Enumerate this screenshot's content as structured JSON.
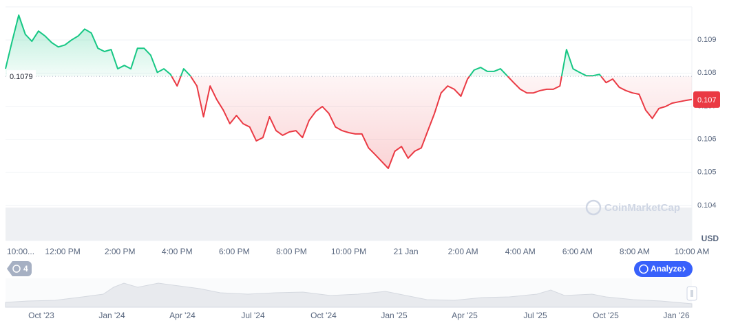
{
  "chart_data": {
    "type": "line",
    "series": [
      {
        "values": [
          0.10813,
          0.10896,
          0.10975,
          0.10917,
          0.10896,
          0.10927,
          0.10912,
          0.10892,
          0.10879,
          0.10885,
          0.109,
          0.10912,
          0.10933,
          0.10921,
          0.10875,
          0.10865,
          0.10871,
          0.10813,
          0.10823,
          0.10813,
          0.10875,
          0.10875,
          0.10854,
          0.10802,
          0.10813,
          0.10796,
          0.10761,
          0.10813,
          0.10792,
          0.10761,
          0.10668,
          0.10761,
          0.1072,
          0.10688,
          0.10647,
          0.10672,
          0.10647,
          0.10637,
          0.10595,
          0.10605,
          0.10668,
          0.10626,
          0.10612,
          0.10622,
          0.10626,
          0.10605,
          0.10657,
          0.10684,
          0.10699,
          0.10678,
          0.10637,
          0.10626,
          0.1062,
          0.10616,
          0.10616,
          0.10574,
          0.10554,
          0.10533,
          0.10512,
          0.10564,
          0.10578,
          0.10543,
          0.10564,
          0.10574,
          0.10626,
          0.10678,
          0.1074,
          0.10761,
          0.10751,
          0.1073,
          0.10782,
          0.10809,
          0.10817,
          0.10805,
          0.10805,
          0.10813,
          0.10792,
          0.10771,
          0.10751,
          0.1074,
          0.1074,
          0.10747,
          0.10751,
          0.10751,
          0.10761,
          0.10871,
          0.10813,
          0.10802,
          0.10792,
          0.10792,
          0.10796,
          0.10771,
          0.10782,
          0.10757,
          0.10747,
          0.1074,
          0.10736,
          0.10688,
          0.10663,
          0.10693,
          0.10699,
          0.10709,
          0.10713,
          0.10717,
          0.1072
        ]
      }
    ],
    "baseline": {
      "value": 0.1079,
      "label": "0.1079"
    },
    "current_price": {
      "value": 0.1072,
      "label": "0.107"
    },
    "up_color": "#16c784",
    "down_color": "#ea3943",
    "ylim": [
      0.10294,
      0.11
    ],
    "yticks": [
      0.104,
      0.105,
      0.106,
      0.107,
      0.108,
      0.109
    ],
    "xticks": [
      "10:00...",
      "12:00 PM",
      "2:00 PM",
      "4:00 PM",
      "6:00 PM",
      "8:00 PM",
      "10:00 PM",
      "21 Jan",
      "2:00 AM",
      "4:00 AM",
      "6:00 AM",
      "8:00 AM",
      "10:00 AM"
    ],
    "y_axis_label": "USD",
    "grid": true
  },
  "ui": {
    "watermark": "CoinMarketCap",
    "indicator_count": 4,
    "analyze_button": "Analyze",
    "navigator_labels": [
      "Oct '23",
      "Jan '24",
      "Apr '24",
      "Jul '24",
      "Oct '24",
      "Jan '25",
      "Apr '25",
      "Jul '25",
      "Oct '25",
      "Jan '26"
    ]
  }
}
